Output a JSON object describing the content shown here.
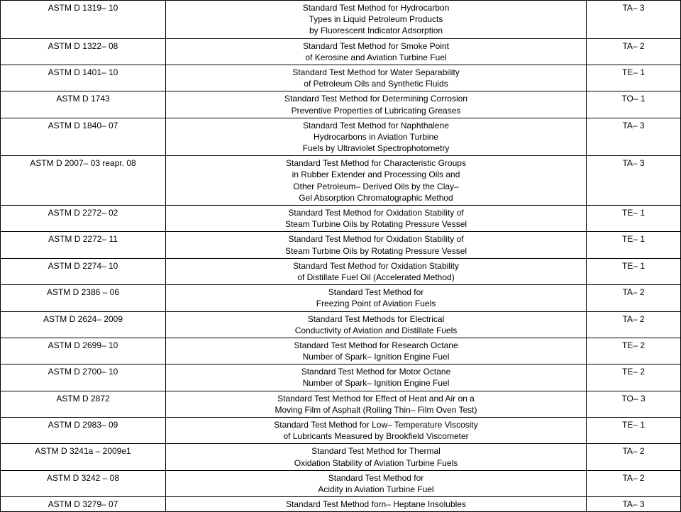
{
  "rows": [
    {
      "id": "ASTM D 1319– 10",
      "desc": "Standard Test Method for Hydrocarbon\nTypes in Liquid Petroleum Products\nby Fluorescent Indicator Adsorption",
      "code": "TA– 3"
    },
    {
      "id": "ASTM D 1322– 08",
      "desc": "Standard Test Method for Smoke Point\nof Kerosine and Aviation Turbine Fuel",
      "code": "TA– 2"
    },
    {
      "id": "ASTM D 1401– 10",
      "desc": "Standard Test Method for Water Separability\nof Petroleum Oils and Synthetic Fluids",
      "code": "TE– 1"
    },
    {
      "id": "ASTM D 1743",
      "desc": "Standard Test Method for Determining Corrosion\nPreventive Properties of Lubricating Greases",
      "code": "TO– 1"
    },
    {
      "id": "ASTM D 1840– 07",
      "desc": "Standard Test Method for Naphthalene\nHydrocarbons in Aviation Turbine\nFuels by Ultraviolet Spectrophotometry",
      "code": "TA– 3"
    },
    {
      "id": "ASTM D 2007– 03 reapr. 08",
      "desc": "Standard Test Method for Characteristic Groups\nin Rubber Extender and Processing Oils and\nOther Petroleum– Derived Oils by the Clay–\nGel Absorption Chromatographic Method",
      "code": "TA– 3"
    },
    {
      "id": "ASTM D 2272– 02",
      "desc": "Standard Test Method for Oxidation Stability of\nSteam Turbine Oils by Rotating Pressure Vessel",
      "code": "TE– 1"
    },
    {
      "id": "ASTM D 2272– 11",
      "desc": "Standard Test Method for Oxidation Stability of\nSteam Turbine Oils by Rotating Pressure Vessel",
      "code": "TE– 1"
    },
    {
      "id": "ASTM D 2274– 10",
      "desc": "Standard Test Method for Oxidation Stability\nof Distillate Fuel Oil (Accelerated Method)",
      "code": "TE– 1"
    },
    {
      "id": "ASTM D 2386 – 06",
      "desc": "Standard Test Method for\nFreezing Point of Aviation Fuels",
      "code": "TA– 2"
    },
    {
      "id": "ASTM D 2624– 2009",
      "desc": "Standard Test Methods for Electrical\nConductivity of Aviation and Distillate Fuels",
      "code": "TA– 2"
    },
    {
      "id": "ASTM D 2699– 10",
      "desc": "Standard Test Method for Research Octane\nNumber of Spark– Ignition Engine Fuel",
      "code": "TE– 2"
    },
    {
      "id": "ASTM D 2700– 10",
      "desc": "Standard Test Method for Motor Octane\nNumber of Spark– Ignition Engine Fuel",
      "code": "TE– 2"
    },
    {
      "id": "ASTM D 2872",
      "desc": "Standard Test Method for Effect of Heat and Air on a\nMoving Film of Asphalt (Rolling Thin– Film Oven Test)",
      "code": "TO– 3"
    },
    {
      "id": "ASTM D 2983– 09",
      "desc": "Standard Test Method for Low– Temperature Viscosity\nof Lubricants Measured by Brookfield Viscometer",
      "code": "TE– 1"
    },
    {
      "id": "ASTM D 3241a – 2009e1",
      "desc": "Standard Test Method for Thermal\nOxidation Stability of Aviation Turbine Fuels",
      "code": "TA– 2"
    },
    {
      "id": "ASTM D 3242 – 08",
      "desc": "Standard Test Method for\nAcidity in Aviation Turbine Fuel",
      "code": "TA– 2"
    },
    {
      "id": "ASTM D 3279– 07",
      "desc": "Standard Test Method forn– Heptane Insolubles",
      "code": "TA– 3"
    }
  ]
}
